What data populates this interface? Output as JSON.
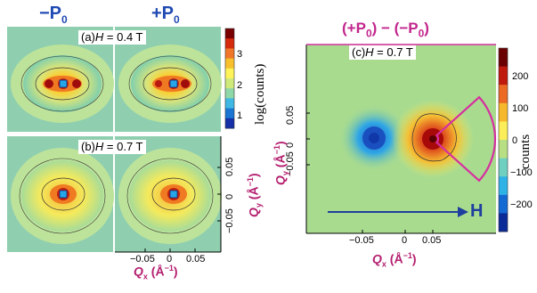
{
  "headers": {
    "minus": "−P",
    "minus_sub": "0",
    "plus": "+P",
    "plus_sub": "0",
    "diff_a": "(+P",
    "diff_b": ") − (−P",
    "diff_c": ")",
    "diff_sub": "0"
  },
  "panel_a": {
    "tag": "(a)",
    "var": "H",
    "value": " = 0.4 T"
  },
  "panel_b": {
    "tag": "(b)",
    "var": "H",
    "value": " = 0.7 T"
  },
  "panel_c": {
    "tag": "(c)",
    "var": "H",
    "value": " = 0.7 T"
  },
  "colorbar_left": {
    "label": "log(counts)",
    "ticks": [
      "3",
      "2",
      "1"
    ],
    "colors": [
      "#7a0000",
      "#d62a0c",
      "#f0772a",
      "#f7c02c",
      "#fff35a",
      "#cfe97a",
      "#8ed7a8",
      "#3fb8e3",
      "#1a76d2",
      "#1530a8"
    ]
  },
  "colorbar_right": {
    "label": "counts",
    "ticks": [
      "200",
      "100",
      "0",
      "−100",
      "−200"
    ],
    "colors": [
      "#6b0000",
      "#c01a0e",
      "#ec6a24",
      "#f6b92c",
      "#fbee58",
      "#b8df83",
      "#6fd0c0",
      "#2fb2e6",
      "#1569d3",
      "#0a2a98"
    ]
  },
  "axis_left": {
    "x_label": "Q",
    "x_sub": "x",
    "x_unit": "(Å",
    "x_sup": "−1",
    "x_close": ")",
    "x_ticks": [
      "−0.05",
      "0",
      "0.05"
    ],
    "y_label": "Q",
    "y_sub": "y",
    "y_unit": "(Å",
    "y_sup": "−1",
    "y_close": ")",
    "y_ticks": [
      "−0.05",
      "0",
      "0.05"
    ]
  },
  "axis_right": {
    "x_label": "Q",
    "x_sub": "x",
    "x_unit": "(Å",
    "x_sup": "−1",
    "x_close": ")",
    "x_ticks": [
      "−0.05",
      "0",
      "0.05"
    ],
    "y_label": "Q",
    "y_sub": "y",
    "y_unit": "(Å",
    "y_sup": "−1",
    "y_close": ")",
    "y_ticks": [
      "0.05",
      "0",
      "−0.05"
    ]
  },
  "field_arrow": {
    "label": "H",
    "color": "#1f3f9e"
  },
  "accent": {
    "magenta": "#c2268c",
    "blue": "#1f49b3",
    "sector": "#d62ea0"
  }
}
